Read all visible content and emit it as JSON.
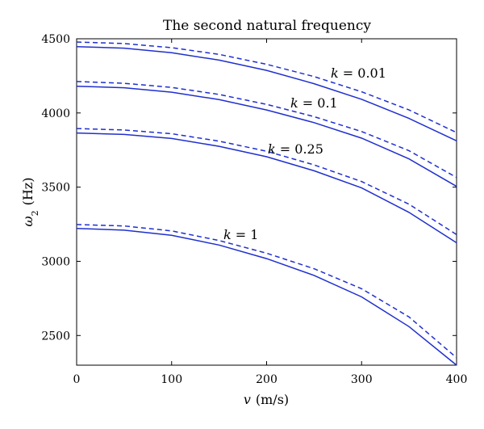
{
  "chart_data": {
    "type": "line",
    "title": "The second natural frequency",
    "xlabel": "v (m/s)",
    "ylabel": "ω2 (Hz)",
    "xlim": [
      0,
      400
    ],
    "ylim": [
      2300,
      4500
    ],
    "xticks": [
      0,
      100,
      200,
      300,
      400
    ],
    "yticks": [
      2500,
      3000,
      3500,
      4000,
      4500
    ],
    "grid": false,
    "colors": {
      "line": "#1f2fcf"
    },
    "annotations": [
      {
        "text": "k = 0.01",
        "series": "k = 0.01"
      },
      {
        "text": "k = 0.1",
        "series": "k = 0.1"
      },
      {
        "text": "k = 0.25",
        "series": "k = 0.25"
      },
      {
        "text": "k = 1",
        "series": "k = 1"
      }
    ],
    "series": [
      {
        "label": "k = 0.01",
        "style": "solid",
        "x": [
          0,
          50,
          100,
          150,
          200,
          250,
          300,
          350,
          400
        ],
        "values": [
          4447,
          4437,
          4406,
          4356,
          4287,
          4197,
          4092,
          3963,
          3812
        ]
      },
      {
        "label": "k = 0.01",
        "style": "dashed",
        "x": [
          0,
          50,
          100,
          150,
          200,
          250,
          300,
          350,
          400
        ],
        "values": [
          4478,
          4468,
          4440,
          4395,
          4328,
          4245,
          4143,
          4020,
          3868
        ]
      },
      {
        "label": "k = 0.1",
        "style": "solid",
        "x": [
          0,
          50,
          100,
          150,
          200,
          250,
          300,
          350,
          400
        ],
        "values": [
          4180,
          4170,
          4140,
          4090,
          4020,
          3935,
          3830,
          3690,
          3505
        ]
      },
      {
        "label": "k = 0.1",
        "style": "dashed",
        "x": [
          0,
          50,
          100,
          150,
          200,
          250,
          300,
          350,
          400
        ],
        "values": [
          4212,
          4200,
          4172,
          4125,
          4058,
          3975,
          3875,
          3745,
          3565
        ]
      },
      {
        "label": "k = 0.25",
        "style": "solid",
        "x": [
          0,
          50,
          100,
          150,
          200,
          250,
          300,
          350,
          400
        ],
        "values": [
          3865,
          3855,
          3828,
          3775,
          3705,
          3610,
          3495,
          3330,
          3125
        ]
      },
      {
        "label": "k = 0.25",
        "style": "dashed",
        "x": [
          0,
          50,
          100,
          150,
          200,
          250,
          300,
          350,
          400
        ],
        "values": [
          3895,
          3885,
          3860,
          3810,
          3742,
          3650,
          3538,
          3385,
          3180
        ]
      },
      {
        "label": "k = 1",
        "style": "solid",
        "x": [
          0,
          50,
          100,
          150,
          200,
          250,
          300,
          350,
          400
        ],
        "values": [
          3222,
          3210,
          3175,
          3110,
          3018,
          2905,
          2760,
          2560,
          2300
        ]
      },
      {
        "label": "k = 1",
        "style": "dashed",
        "x": [
          0,
          50,
          100,
          150,
          200,
          250,
          300,
          350,
          400
        ],
        "values": [
          3248,
          3238,
          3205,
          3140,
          3055,
          2950,
          2815,
          2625,
          2350
        ]
      }
    ]
  }
}
